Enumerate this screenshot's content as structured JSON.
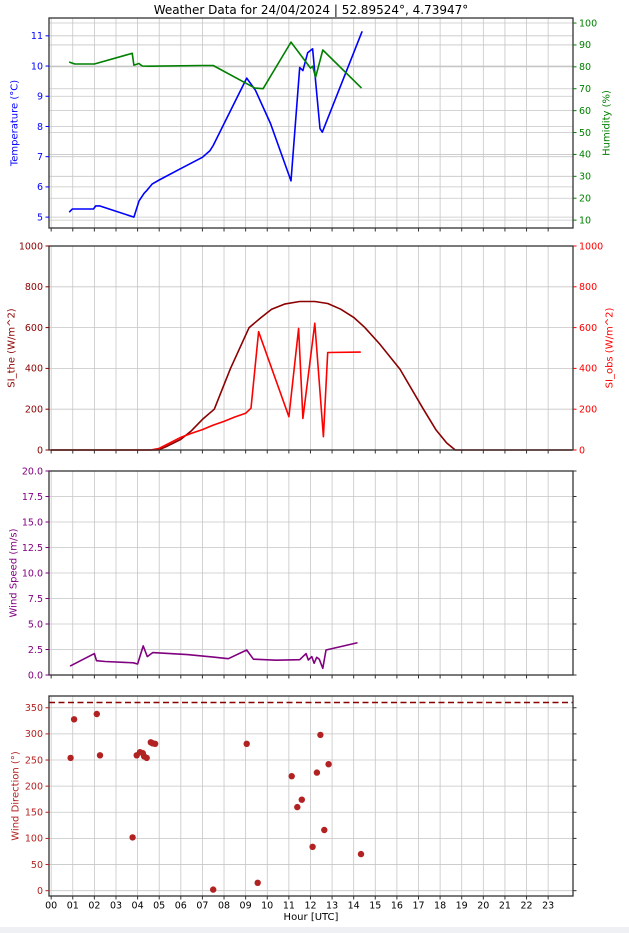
{
  "title": "Weather Data for 24/04/2024 | 52.89524°, 4.73947°",
  "style": {
    "background": "#ffffff",
    "grid_color": "#c6c6c6",
    "spine_color": "#333333",
    "text_color": "#000000"
  },
  "chart_data": {
    "type": "multi-panel",
    "x_axis": {
      "label": "Hour [UTC]",
      "lim": [
        -0.1,
        24.15
      ],
      "ticks": [
        0,
        1,
        2,
        3,
        4,
        5,
        6,
        7,
        8,
        9,
        10,
        11,
        12,
        13,
        14,
        15,
        16,
        17,
        18,
        19,
        20,
        21,
        22,
        23
      ],
      "tick_labels": [
        "00",
        "01",
        "02",
        "03",
        "04",
        "05",
        "06",
        "07",
        "08",
        "09",
        "10",
        "11",
        "12",
        "13",
        "14",
        "15",
        "16",
        "17",
        "18",
        "19",
        "20",
        "21",
        "22",
        "23"
      ]
    },
    "panels": [
      {
        "name": "temperature-humidity",
        "left": {
          "label": "Temperature (°C)",
          "color": "#0000ff",
          "lim": [
            4.64,
            11.59
          ],
          "ticks": [
            5,
            6,
            7,
            8,
            9,
            10,
            11
          ],
          "tick_labels": [
            "5",
            "6",
            "7",
            "8",
            "9",
            "10",
            "11"
          ]
        },
        "right": {
          "label": "Humidity (%)",
          "color": "#008000",
          "lim": [
            6.4,
            102.3
          ],
          "ticks": [
            10,
            20,
            30,
            40,
            50,
            60,
            70,
            80,
            90,
            100
          ],
          "tick_labels": [
            "10",
            "20",
            "30",
            "40",
            "50",
            "60",
            "70",
            "80",
            "90",
            "100"
          ]
        },
        "series": [
          {
            "name": "temperature",
            "type": "line",
            "axis": "left",
            "color": "#0000ff",
            "points": [
              [
                0.86,
                5.18
              ],
              [
                0.98,
                5.27
              ],
              [
                1.96,
                5.27
              ],
              [
                2.06,
                5.37
              ],
              [
                2.24,
                5.37
              ],
              [
                3.83,
                5.0
              ],
              [
                4.07,
                5.54
              ],
              [
                4.3,
                5.79
              ],
              [
                4.45,
                5.9
              ],
              [
                4.68,
                6.1
              ],
              [
                5.0,
                6.23
              ],
              [
                5.92,
                6.58
              ],
              [
                7.0,
                6.98
              ],
              [
                7.35,
                7.2
              ],
              [
                7.5,
                7.37
              ],
              [
                9.05,
                9.6
              ],
              [
                9.45,
                9.2
              ],
              [
                10.15,
                8.1
              ],
              [
                11.1,
                6.2
              ],
              [
                11.5,
                9.95
              ],
              [
                11.65,
                9.85
              ],
              [
                11.87,
                10.44
              ],
              [
                12.1,
                10.57
              ],
              [
                12.44,
                7.93
              ],
              [
                12.55,
                7.81
              ],
              [
                14.38,
                11.13
              ]
            ]
          },
          {
            "name": "humidity",
            "type": "line",
            "axis": "right",
            "color": "#008000",
            "points": [
              [
                0.86,
                82.1
              ],
              [
                1.1,
                81.3
              ],
              [
                2.0,
                81.3
              ],
              [
                3.75,
                86.2
              ],
              [
                3.83,
                80.8
              ],
              [
                4.06,
                81.5
              ],
              [
                4.22,
                80.4
              ],
              [
                4.53,
                80.3
              ],
              [
                7.0,
                80.6
              ],
              [
                7.5,
                80.6
              ],
              [
                9.43,
                70.3
              ],
              [
                9.81,
                70.0
              ],
              [
                11.1,
                91.3
              ],
              [
                12.0,
                79.4
              ],
              [
                12.1,
                80.3
              ],
              [
                12.24,
                75.2
              ],
              [
                12.57,
                87.7
              ],
              [
                14.34,
                70.5
              ]
            ]
          }
        ]
      },
      {
        "name": "solar-irradiance",
        "left": {
          "label": "SI_the (W/m^2)",
          "color": "#8b0000",
          "lim": [
            0,
            1000
          ],
          "ticks": [
            0,
            200,
            400,
            600,
            800,
            1000
          ],
          "tick_labels": [
            "0",
            "200",
            "400",
            "600",
            "800",
            "1000"
          ]
        },
        "right": {
          "label": "SI_obs (W/m^2)",
          "color": "#ff0000",
          "lim": [
            0,
            1000
          ],
          "ticks": [
            0,
            200,
            400,
            600,
            800,
            1000
          ],
          "tick_labels": [
            "0",
            "200",
            "400",
            "600",
            "800",
            "1000"
          ]
        },
        "series": [
          {
            "name": "si-theoretical",
            "type": "line",
            "axis": "left",
            "color": "#8b0000",
            "points": [
              [
                0,
                0
              ],
              [
                4.95,
                0
              ],
              [
                5.3,
                15
              ],
              [
                6,
                52
              ],
              [
                6.5,
                95
              ],
              [
                7,
                150
              ],
              [
                7.55,
                200
              ],
              [
                8.3,
                400
              ],
              [
                9.16,
                600
              ],
              [
                9.7,
                648
              ],
              [
                10.2,
                690
              ],
              [
                10.8,
                715
              ],
              [
                11.5,
                728
              ],
              [
                12.2,
                728
              ],
              [
                12.8,
                718
              ],
              [
                13.4,
                690
              ],
              [
                14,
                650
              ],
              [
                14.5,
                602
              ],
              [
                15.2,
                520
              ],
              [
                16.15,
                395
              ],
              [
                17.2,
                205
              ],
              [
                17.8,
                100
              ],
              [
                18.3,
                35
              ],
              [
                18.7,
                0
              ],
              [
                24.1,
                0
              ]
            ]
          },
          {
            "name": "si-observed",
            "type": "line",
            "axis": "right",
            "color": "#ff0000",
            "points": [
              [
                0,
                0
              ],
              [
                4.6,
                0
              ],
              [
                5,
                8
              ],
              [
                5.5,
                35
              ],
              [
                6,
                62
              ],
              [
                6.5,
                82
              ],
              [
                7,
                100
              ],
              [
                7.5,
                122
              ],
              [
                8,
                140
              ],
              [
                8.5,
                162
              ],
              [
                9,
                180
              ],
              [
                9.25,
                205
              ],
              [
                9.6,
                580
              ],
              [
                11.0,
                163
              ],
              [
                11.45,
                596
              ],
              [
                11.65,
                155
              ],
              [
                12.2,
                621
              ],
              [
                12.6,
                65
              ],
              [
                12.8,
                478
              ],
              [
                14.3,
                480
              ]
            ]
          }
        ]
      },
      {
        "name": "wind-speed",
        "left": {
          "label": "Wind Speed (m/s)",
          "color": "#800080",
          "lim": [
            0,
            20
          ],
          "ticks": [
            0,
            2.5,
            5,
            7.5,
            10,
            12.5,
            15,
            17.5,
            20
          ],
          "tick_labels": [
            "0.0",
            "2.5",
            "5.0",
            "7.5",
            "10.0",
            "12.5",
            "15.0",
            "17.5",
            "20.0"
          ]
        },
        "series": [
          {
            "name": "wind-speed",
            "type": "line",
            "axis": "left",
            "color": "#800080",
            "points": [
              [
                0.9,
                0.9
              ],
              [
                2.0,
                2.1
              ],
              [
                2.1,
                1.4
              ],
              [
                2.5,
                1.32
              ],
              [
                3.8,
                1.2
              ],
              [
                4.0,
                1.08
              ],
              [
                4.26,
                2.85
              ],
              [
                4.45,
                1.8
              ],
              [
                4.7,
                2.2
              ],
              [
                6.3,
                2.0
              ],
              [
                7.5,
                1.75
              ],
              [
                8.2,
                1.6
              ],
              [
                9.05,
                2.45
              ],
              [
                9.36,
                1.55
              ],
              [
                10.4,
                1.45
              ],
              [
                11.5,
                1.5
              ],
              [
                11.8,
                2.1
              ],
              [
                11.9,
                1.47
              ],
              [
                12.06,
                1.8
              ],
              [
                12.17,
                1.15
              ],
              [
                12.29,
                1.74
              ],
              [
                12.41,
                1.54
              ],
              [
                12.57,
                0.65
              ],
              [
                12.72,
                2.45
              ],
              [
                14.15,
                3.15
              ]
            ]
          }
        ]
      },
      {
        "name": "wind-direction",
        "left": {
          "label": "Wind Direction (°)",
          "color": "#b22222",
          "lim": [
            -10.2,
            372.5
          ],
          "ticks": [
            0,
            50,
            100,
            150,
            200,
            250,
            300,
            350
          ],
          "tick_labels": [
            "0",
            "50",
            "100",
            "150",
            "200",
            "250",
            "300",
            "350"
          ]
        },
        "hline": {
          "value": 360,
          "color": "#8b0000",
          "dash": true
        },
        "show_x_tick_labels": true,
        "series": [
          {
            "name": "wind-direction",
            "type": "scatter",
            "axis": "left",
            "color": "#b22222",
            "points": [
              [
                0.9,
                254
              ],
              [
                1.06,
                328
              ],
              [
                2.11,
                338
              ],
              [
                2.26,
                259
              ],
              [
                3.77,
                102
              ],
              [
                3.96,
                259
              ],
              [
                4.11,
                265
              ],
              [
                4.24,
                263
              ],
              [
                4.3,
                257
              ],
              [
                4.42,
                254
              ],
              [
                4.61,
                284
              ],
              [
                4.7,
                282
              ],
              [
                4.81,
                281
              ],
              [
                7.5,
                2
              ],
              [
                9.05,
                281
              ],
              [
                9.56,
                15
              ],
              [
                11.13,
                219
              ],
              [
                11.39,
                160
              ],
              [
                11.6,
                174
              ],
              [
                12.1,
                84
              ],
              [
                12.3,
                226
              ],
              [
                12.46,
                298
              ],
              [
                12.64,
                116
              ],
              [
                12.84,
                242
              ],
              [
                14.34,
                70
              ]
            ]
          }
        ]
      }
    ]
  }
}
